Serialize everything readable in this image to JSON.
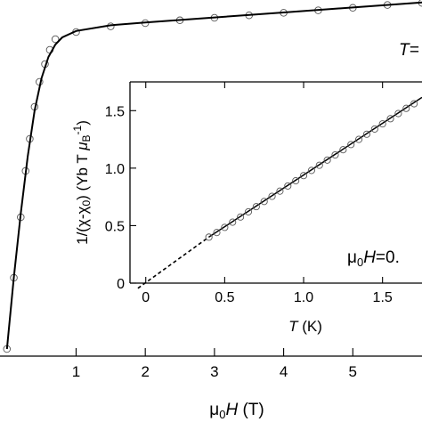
{
  "chart_data": [
    {
      "type": "scatter",
      "panel": "main",
      "xlabel_sym": "μ",
      "xlabel_sub": "0",
      "xlabel_var": "H",
      "xlabel_unit": " (T)",
      "xlim": [
        -0.1,
        6.0
      ],
      "ylim": [
        0.0,
        1.0
      ],
      "xticks": [
        1,
        2,
        3,
        4,
        5
      ],
      "annotation": "T=",
      "series": [
        {
          "kind": "markers",
          "x": [
            0.0,
            0.1,
            0.2,
            0.27,
            0.33,
            0.4,
            0.47,
            0.55,
            0.62,
            0.7,
            1.0,
            1.5,
            2.0,
            2.5,
            3.0,
            3.5,
            4.0,
            4.5,
            5.0,
            5.5,
            6.0
          ],
          "y": [
            0.02,
            0.22,
            0.39,
            0.52,
            0.61,
            0.7,
            0.77,
            0.82,
            0.86,
            0.89,
            0.91,
            0.926,
            0.935,
            0.943,
            0.95,
            0.957,
            0.964,
            0.971,
            0.978,
            0.986,
            0.992
          ]
        },
        {
          "kind": "line",
          "x": [
            0.0,
            0.1,
            0.2,
            0.3,
            0.4,
            0.5,
            0.6,
            0.7,
            0.8,
            1.0,
            1.5,
            2.0,
            3.0,
            4.0,
            5.0,
            6.0
          ],
          "y": [
            0.02,
            0.22,
            0.4,
            0.56,
            0.69,
            0.78,
            0.84,
            0.875,
            0.895,
            0.913,
            0.929,
            0.937,
            0.951,
            0.965,
            0.979,
            0.993
          ]
        }
      ]
    },
    {
      "type": "scatter",
      "panel": "inset",
      "xlabel_var": "T",
      "xlabel_unit": " (K)",
      "ylabel": "1/(χ-χ0)  (Yb T μB-1)",
      "ylabel_a": "1/(χ-χ",
      "ylabel_a_sub": "0",
      "ylabel_b": ")  (Yb T ",
      "ylabel_mu": "μ",
      "ylabel_mu_sub": "B",
      "ylabel_sup": "-1",
      "ylabel_c": ")",
      "xlim": [
        -0.1,
        1.75
      ],
      "ylim": [
        0.0,
        1.75
      ],
      "xticks": [
        0,
        0.5,
        1,
        1.5
      ],
      "xtick_labels": [
        "0",
        "0.5",
        "1.0",
        "1.5"
      ],
      "yticks": [
        0,
        0.5,
        1.0,
        1.5
      ],
      "ytick_labels": [
        "0",
        "0.5",
        "1.0",
        "1.5"
      ],
      "annotation_sym": "μ",
      "annotation_sub": "0",
      "annotation_var": "H",
      "annotation_val": "=0.",
      "series": [
        {
          "kind": "markers",
          "x": [
            0.4,
            0.45,
            0.5,
            0.55,
            0.6,
            0.65,
            0.7,
            0.75,
            0.8,
            0.85,
            0.9,
            0.95,
            1.0,
            1.05,
            1.1,
            1.15,
            1.2,
            1.25,
            1.3,
            1.35,
            1.4,
            1.45,
            1.5,
            1.55,
            1.6,
            1.65,
            1.7
          ],
          "y": [
            0.4,
            0.44,
            0.485,
            0.53,
            0.575,
            0.62,
            0.665,
            0.71,
            0.755,
            0.8,
            0.845,
            0.89,
            0.935,
            0.98,
            1.025,
            1.07,
            1.115,
            1.16,
            1.205,
            1.25,
            1.295,
            1.34,
            1.385,
            1.43,
            1.475,
            1.52,
            1.56
          ]
        },
        {
          "kind": "line",
          "x": [
            0.4,
            1.75
          ],
          "y": [
            0.4,
            1.615
          ]
        },
        {
          "kind": "dashed",
          "x": [
            -0.05,
            0.4
          ],
          "y": [
            -0.045,
            0.4
          ]
        }
      ]
    }
  ]
}
